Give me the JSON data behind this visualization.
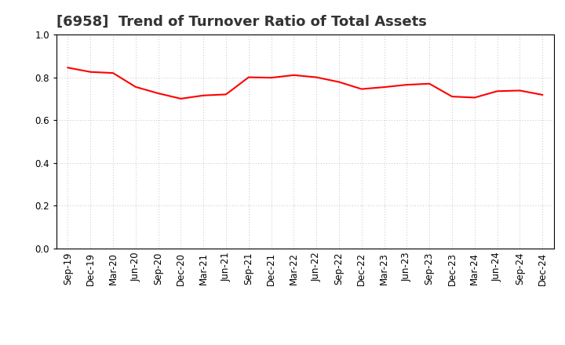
{
  "title": "[6958]  Trend of Turnover Ratio of Total Assets",
  "x_labels": [
    "Sep-19",
    "Dec-19",
    "Mar-20",
    "Jun-20",
    "Sep-20",
    "Dec-20",
    "Mar-21",
    "Jun-21",
    "Sep-21",
    "Dec-21",
    "Mar-22",
    "Jun-22",
    "Sep-22",
    "Dec-22",
    "Mar-23",
    "Jun-23",
    "Sep-23",
    "Dec-23",
    "Mar-24",
    "Jun-24",
    "Sep-24",
    "Dec-24"
  ],
  "y_values": [
    0.845,
    0.825,
    0.82,
    0.755,
    0.725,
    0.7,
    0.715,
    0.72,
    0.8,
    0.798,
    0.81,
    0.8,
    0.778,
    0.745,
    0.754,
    0.765,
    0.77,
    0.71,
    0.705,
    0.735,
    0.738,
    0.718
  ],
  "line_color": "#FF0000",
  "line_width": 1.5,
  "ylim": [
    0.0,
    1.0
  ],
  "yticks": [
    0.0,
    0.2,
    0.4,
    0.6,
    0.8,
    1.0
  ],
  "grid_color": "#aaaaaa",
  "background_color": "#ffffff",
  "title_fontsize": 13,
  "tick_fontsize": 8.5,
  "title_color": "#333333"
}
